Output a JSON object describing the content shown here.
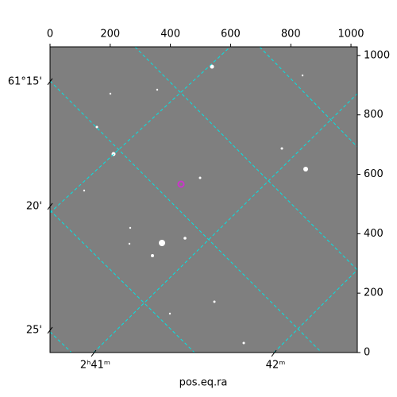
{
  "chart_data": {
    "type": "image",
    "xlabel": "pos.eq.ra",
    "xlim": [
      0,
      1021
    ],
    "ylim": [
      0,
      1029
    ],
    "xticks": [
      0,
      200,
      400,
      600,
      800,
      1000
    ],
    "yticks": [
      0,
      200,
      400,
      600,
      800,
      1000
    ],
    "ra_ticks": [
      {
        "value": 145,
        "label": "2ʰ41ᵐ"
      },
      {
        "value": 744,
        "label": "42ᵐ"
      }
    ],
    "dec_ticks": [
      {
        "value": 912,
        "label": "61°15'"
      },
      {
        "value": 492,
        "label": "20'"
      },
      {
        "value": 75,
        "label": "25'"
      }
    ],
    "grid": true,
    "grid_color": "#00e5e5",
    "marker_color": "#cc33cc"
  }
}
